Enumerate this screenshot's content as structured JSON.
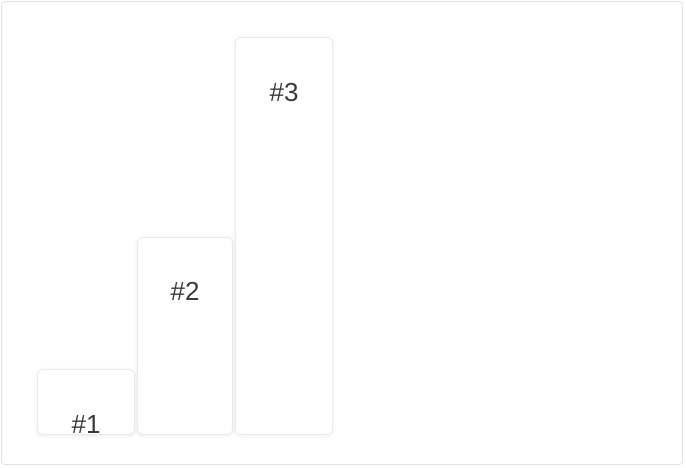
{
  "cards": [
    {
      "label": "#1"
    },
    {
      "label": "#2"
    },
    {
      "label": "#3"
    }
  ],
  "colors": {
    "card_background": "#ffffff",
    "card_border": "#ebebeb",
    "frame_border": "#e2e2e2",
    "label_text": "#3a3a3a"
  }
}
